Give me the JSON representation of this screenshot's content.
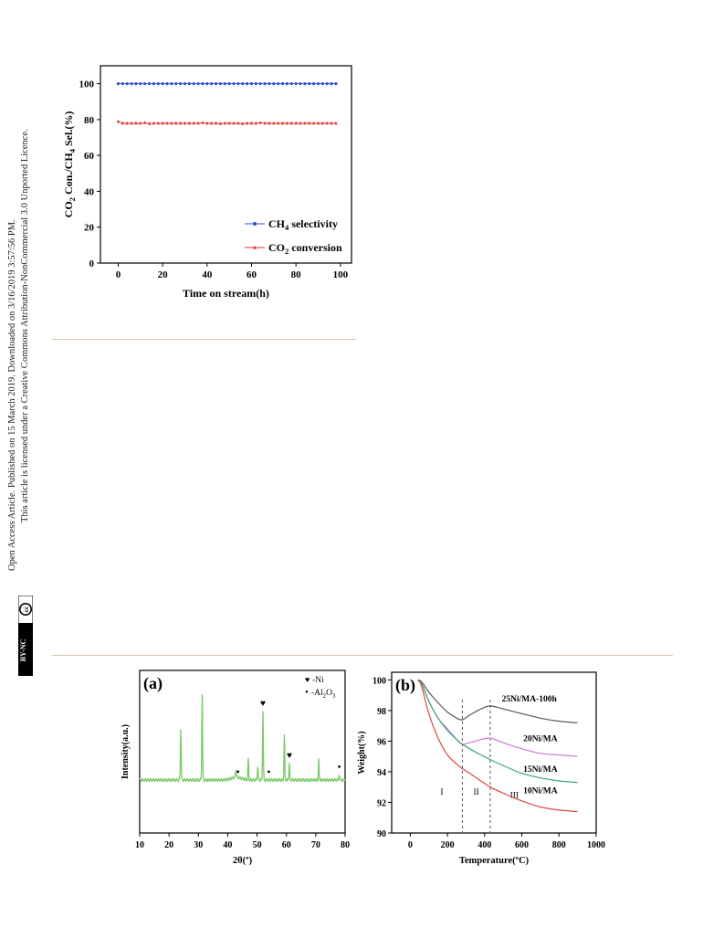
{
  "sidebar": {
    "line1": "Open Access Article. Published on 15 March 2019. Downloaded on 3/16/2019 3:57:56 PM.",
    "line2": "This article is licensed under a Creative Commons Attribution-NonCommercial 3.0 Unported Licence.",
    "cc_label": "BY-NC",
    "cc_symbol": "cc"
  },
  "colors": {
    "rule": "#d8c7ad",
    "ch4": "#2e4fd6",
    "co2": "#e03030",
    "green": "#7cc96b",
    "c25": "#5a5a5a",
    "c20": "#c77bd1",
    "c15": "#3fa37c",
    "c10": "#e04848"
  },
  "chart_data": [
    {
      "type": "line",
      "xlabel": "Time on stream(h)",
      "ylabel_parts": [
        "CO",
        "2",
        " Con./CH",
        "4",
        " Sel.(%)"
      ],
      "xlim": [
        -8,
        105
      ],
      "ylim": [
        0,
        110
      ],
      "xticks": [
        0,
        20,
        40,
        60,
        80,
        100
      ],
      "yticks": [
        0,
        20,
        40,
        60,
        80,
        100
      ],
      "legend_position": "bottom-right",
      "series": [
        {
          "name_parts": [
            "CH",
            "4",
            " selectivity"
          ],
          "marker": "circle",
          "x_start": 0,
          "x_end": 98,
          "x_step": 2,
          "value": 100
        },
        {
          "name_parts": [
            "CO",
            "2",
            " conversion"
          ],
          "marker": "triangle",
          "x_start": 0,
          "x_end": 98,
          "x_step": 2,
          "values": [
            79,
            78,
            78,
            78,
            78,
            78,
            78.3,
            77.8,
            78,
            78,
            78,
            78,
            78,
            78,
            78,
            78,
            78,
            78,
            78,
            78.3,
            78,
            78,
            78,
            77.8,
            78,
            78,
            78,
            78,
            77.8,
            78,
            78,
            78,
            78.3,
            78,
            78,
            78,
            78,
            78,
            78,
            78,
            78,
            78,
            78,
            78,
            78,
            78,
            78,
            78,
            78,
            78
          ]
        }
      ]
    },
    {
      "type": "line",
      "panel_label": "(a)",
      "xlabel": "2θ(º)",
      "ylabel": "Intensity(a.u.)",
      "xlim": [
        10,
        80
      ],
      "xticks": [
        10,
        20,
        30,
        40,
        50,
        60,
        70,
        80
      ],
      "legend": [
        {
          "symbol": "♥",
          "label": "-Ni"
        },
        {
          "symbol": "•",
          "label_parts": [
            "-Al",
            "2",
            "O",
            "3"
          ]
        }
      ],
      "peaks": [
        {
          "x": 24.0,
          "h": 0.3
        },
        {
          "x": 31.3,
          "h": 0.5
        },
        {
          "x": 42.8,
          "h": 0.05
        },
        {
          "x": 47.0,
          "h": 0.12
        },
        {
          "x": 50.2,
          "h": 0.08
        },
        {
          "x": 52.0,
          "h": 0.4
        },
        {
          "x": 59.3,
          "h": 0.26
        },
        {
          "x": 61.0,
          "h": 0.1
        },
        {
          "x": 71.0,
          "h": 0.12
        },
        {
          "x": 78.0,
          "h": 0.03
        }
      ],
      "markers": [
        {
          "x": 52.0,
          "symbol": "♥"
        },
        {
          "x": 61.0,
          "symbol": "♥"
        },
        {
          "x": 43.5,
          "symbol": "•"
        },
        {
          "x": 54.0,
          "symbol": "•"
        },
        {
          "x": 78.0,
          "symbol": "•"
        }
      ]
    },
    {
      "type": "line",
      "panel_label": "(b)",
      "xlabel": "Temperature(ºC)",
      "ylabel": "Weight(%)",
      "xlim": [
        -100,
        1000
      ],
      "ylim": [
        90,
        100.5
      ],
      "xticks": [
        0,
        200,
        400,
        600,
        800,
        1000
      ],
      "yticks": [
        90,
        92,
        94,
        96,
        98,
        100
      ],
      "vlines": [
        280,
        430
      ],
      "regions": [
        {
          "label": "I",
          "x": 170,
          "y": 92.5
        },
        {
          "label": "II",
          "x": 355,
          "y": 92.5
        },
        {
          "label": "III",
          "x": 560,
          "y": 92.3
        }
      ],
      "series": [
        {
          "name": "25Ni/MA-100h",
          "label_x": 640,
          "label_y": 98.6,
          "x": [
            40,
            60,
            100,
            150,
            200,
            250,
            280,
            320,
            380,
            430,
            500,
            600,
            700,
            800,
            900
          ],
          "y": [
            100,
            99.9,
            99.2,
            98.5,
            97.9,
            97.5,
            97.4,
            97.7,
            98.1,
            98.3,
            98.1,
            97.8,
            97.5,
            97.3,
            97.2
          ]
        },
        {
          "name": "20Ni/MA",
          "label_x": 700,
          "label_y": 96.0,
          "x": [
            40,
            60,
            100,
            150,
            200,
            250,
            280,
            320,
            380,
            430,
            500,
            600,
            700,
            800,
            900
          ],
          "y": [
            100,
            99.8,
            98.6,
            97.5,
            96.8,
            96.1,
            95.8,
            95.9,
            96.1,
            96.2,
            95.9,
            95.5,
            95.2,
            95.1,
            95.0
          ]
        },
        {
          "name": "15Ni/MA",
          "label_x": 700,
          "label_y": 94.0,
          "x": [
            40,
            60,
            100,
            150,
            200,
            250,
            280,
            320,
            380,
            430,
            500,
            600,
            700,
            800,
            900
          ],
          "y": [
            100,
            99.8,
            98.6,
            97.5,
            96.7,
            96.1,
            95.8,
            95.5,
            95.1,
            94.8,
            94.4,
            93.9,
            93.6,
            93.4,
            93.3
          ]
        },
        {
          "name": "10Ni/MA",
          "label_x": 700,
          "label_y": 92.6,
          "x": [
            40,
            60,
            100,
            150,
            200,
            250,
            280,
            320,
            380,
            430,
            500,
            600,
            700,
            800,
            900
          ],
          "y": [
            100,
            99.6,
            97.8,
            96.2,
            95.1,
            94.5,
            94.2,
            93.9,
            93.4,
            93.0,
            92.6,
            92.1,
            91.7,
            91.5,
            91.4
          ]
        }
      ]
    }
  ]
}
